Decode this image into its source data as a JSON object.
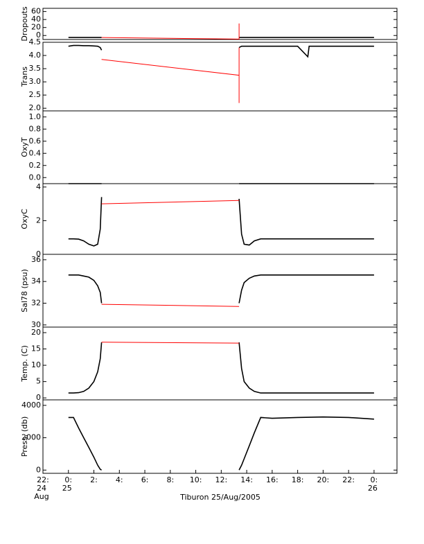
{
  "chart_data": [
    {
      "type": "line",
      "ylabel": "Dropouts",
      "xlim": [
        -2,
        25.8
      ],
      "ylim": [
        -10,
        68
      ],
      "yticks": [
        0,
        20,
        40,
        60
      ],
      "x": [
        0,
        0.4,
        0.8,
        1.2,
        1.6,
        2.0,
        2.3,
        2.5,
        2.6,
        8,
        13.4,
        13.6,
        13.8,
        14.2,
        14.6,
        15.1,
        16,
        18,
        20,
        22,
        24
      ],
      "series": [
        {
          "color": "#000000",
          "values": [
            -5,
            -5,
            -5,
            -5,
            -5,
            -5,
            -5,
            -5,
            -5,
            null,
            -5,
            -5,
            -5,
            -5,
            -5,
            -5,
            -5,
            -5,
            -5,
            -5,
            -5
          ]
        },
        {
          "color": "#ff0000",
          "x": [
            2.6,
            13.4,
            13.4,
            13.4
          ],
          "values": [
            -5,
            -9,
            30,
            -5
          ]
        }
      ]
    },
    {
      "type": "line",
      "ylabel": "Trans",
      "xlim": [
        -2,
        25.8
      ],
      "ylim": [
        1.9,
        4.5
      ],
      "yticks": [
        {
          "value": 2,
          "label": "2.0"
        },
        2.5,
        {
          "value": 3,
          "label": "3.0"
        },
        3.5,
        {
          "value": 4,
          "label": "4.0"
        },
        4.5
      ],
      "x": [
        0,
        0.4,
        0.8,
        1.2,
        1.6,
        2.0,
        2.3,
        2.5,
        2.6,
        8,
        13.4,
        13.6,
        13.8,
        14.2,
        14.6,
        15.1,
        16,
        18,
        18.8,
        18.9,
        20,
        22,
        24
      ],
      "series": [
        {
          "color": "#000000",
          "values": [
            4.35,
            4.38,
            4.38,
            4.37,
            4.37,
            4.36,
            4.35,
            4.3,
            4.2,
            null,
            4.3,
            4.35,
            4.35,
            4.35,
            4.35,
            4.35,
            4.35,
            4.35,
            3.95,
            4.35,
            4.35,
            4.35,
            4.35
          ]
        },
        {
          "color": "#ff0000",
          "x": [
            2.6,
            13.4,
            13.4,
            13.4
          ],
          "values": [
            3.85,
            3.25,
            2.2,
            4.3
          ]
        }
      ]
    },
    {
      "type": "line",
      "ylabel": "OxyT",
      "xlim": [
        -2,
        25.8
      ],
      "ylim": [
        -0.1,
        1.1
      ],
      "yticks": [
        {
          "value": 0,
          "label": "0.0"
        },
        0.2,
        0.4,
        0.6,
        0.8,
        {
          "value": 1,
          "label": "1.0"
        }
      ],
      "x": [
        0,
        0.4,
        0.8,
        1.2,
        1.6,
        2.0,
        2.3,
        2.5,
        2.6,
        8,
        13.4,
        13.6,
        13.8,
        14.2,
        14.6,
        15.1,
        16,
        18,
        20,
        22,
        24
      ],
      "series": [
        {
          "color": "#000000",
          "values": [
            -0.1,
            -0.1,
            -0.1,
            -0.1,
            -0.1,
            -0.1,
            -0.1,
            -0.1,
            -0.1,
            null,
            -0.1,
            -0.1,
            -0.1,
            -0.1,
            -0.1,
            -0.1,
            -0.1,
            -0.1,
            -0.1,
            -0.1,
            -0.1
          ]
        },
        {
          "color": "#ff0000",
          "x": [
            2.6,
            13.4
          ],
          "values": [
            -0.1,
            -0.1
          ]
        }
      ]
    },
    {
      "type": "line",
      "ylabel": "OxyC",
      "xlim": [
        -2,
        25.8
      ],
      "ylim": [
        0,
        4.2
      ],
      "yticks": [
        0,
        2,
        4
      ],
      "x": [
        0,
        0.4,
        0.8,
        1.2,
        1.6,
        2.0,
        2.3,
        2.5,
        2.6,
        8,
        13.4,
        13.6,
        13.8,
        14.2,
        14.6,
        15.1,
        16,
        18,
        20,
        22,
        24
      ],
      "series": [
        {
          "color": "#000000",
          "values": [
            0.92,
            0.92,
            0.9,
            0.8,
            0.6,
            0.5,
            0.6,
            1.5,
            3.4,
            null,
            3.3,
            1.2,
            0.6,
            0.55,
            0.8,
            0.92,
            0.92,
            0.92,
            0.92,
            0.92,
            0.92
          ]
        },
        {
          "color": "#ff0000",
          "x": [
            2.6,
            13.4
          ],
          "values": [
            3.0,
            3.2
          ]
        }
      ]
    },
    {
      "type": "line",
      "ylabel": "Sal78 (psu)",
      "xlim": [
        -2,
        25.8
      ],
      "ylim": [
        29.8,
        36.5
      ],
      "yticks": [
        30,
        32,
        34,
        36
      ],
      "x": [
        0,
        0.4,
        0.8,
        1.2,
        1.6,
        2.0,
        2.3,
        2.5,
        2.6,
        8,
        13.4,
        13.6,
        13.8,
        14.2,
        14.6,
        15.1,
        16,
        18,
        20,
        22,
        24
      ],
      "series": [
        {
          "color": "#000000",
          "values": [
            34.6,
            34.6,
            34.6,
            34.5,
            34.4,
            34.1,
            33.6,
            33,
            32,
            null,
            32,
            33.2,
            33.9,
            34.3,
            34.5,
            34.6,
            34.6,
            34.6,
            34.6,
            34.6,
            34.6
          ]
        },
        {
          "color": "#ff0000",
          "x": [
            2.6,
            13.4
          ],
          "values": [
            31.9,
            31.7
          ]
        }
      ]
    },
    {
      "type": "line",
      "ylabel": "Temp. (C)",
      "xlim": [
        -2,
        25.8
      ],
      "ylim": [
        -0.6,
        21.7
      ],
      "yticks": [
        0,
        5,
        10,
        15,
        20
      ],
      "x": [
        0,
        0.4,
        0.8,
        1.2,
        1.6,
        2.0,
        2.3,
        2.5,
        2.6,
        8,
        13.4,
        13.6,
        13.8,
        14.2,
        14.6,
        15.1,
        16,
        18,
        20,
        22,
        24
      ],
      "series": [
        {
          "color": "#000000",
          "values": [
            1.5,
            1.5,
            1.6,
            2,
            3,
            5,
            8,
            12,
            17,
            null,
            17,
            9,
            5,
            3,
            2,
            1.5,
            1.5,
            1.5,
            1.5,
            1.5,
            1.5
          ]
        },
        {
          "color": "#ff0000",
          "x": [
            2.6,
            13.4
          ],
          "values": [
            17.1,
            16.8
          ]
        }
      ]
    },
    {
      "type": "line",
      "ylabel": "Press. (db)",
      "xlabel": "Tiburon 25/Aug/2005",
      "xlim": [
        -2,
        25.8
      ],
      "ylim": [
        -200,
        4340
      ],
      "yticks": [
        0,
        2000,
        4000
      ],
      "xticks": [
        {
          "value": -2,
          "label": [
            "22:",
            "24",
            "Aug"
          ]
        },
        {
          "value": 0,
          "label": [
            "0:",
            "25"
          ]
        },
        {
          "value": 2,
          "label": "2:"
        },
        {
          "value": 4,
          "label": "4:"
        },
        {
          "value": 6,
          "label": "6:"
        },
        {
          "value": 8,
          "label": "8:"
        },
        {
          "value": 10,
          "label": "10:"
        },
        {
          "value": 12,
          "label": "12:"
        },
        {
          "value": 14,
          "label": "14:"
        },
        {
          "value": 16,
          "label": "16:"
        },
        {
          "value": 18,
          "label": "18:"
        },
        {
          "value": 20,
          "label": "20:"
        },
        {
          "value": 22,
          "label": "22:"
        },
        {
          "value": 24,
          "label": [
            "0:",
            "26"
          ]
        }
      ],
      "x": [
        0,
        0.4,
        0.8,
        1.2,
        1.6,
        2.0,
        2.3,
        2.5,
        2.6,
        8,
        13.4,
        13.6,
        13.8,
        14.2,
        14.6,
        15.1,
        16,
        18,
        20,
        22,
        24
      ],
      "series": [
        {
          "color": "#000000",
          "values": [
            3250,
            3250,
            2600,
            2000,
            1400,
            800,
            300,
            50,
            0,
            null,
            0,
            300,
            700,
            1500,
            2300,
            3250,
            3200,
            3250,
            3280,
            3250,
            3150
          ]
        }
      ]
    }
  ]
}
